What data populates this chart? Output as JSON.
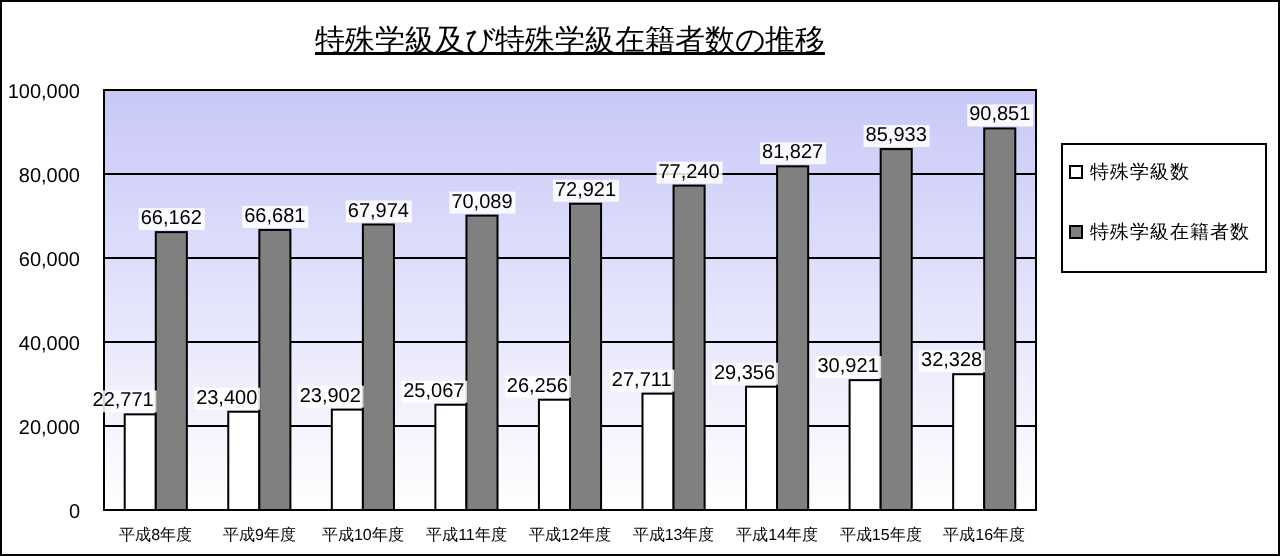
{
  "chart_data": {
    "type": "bar",
    "title": "特殊学級及び特殊学級在籍者数の推移",
    "categories": [
      "平成8年度",
      "平成9年度",
      "平成10年度",
      "平成11年度",
      "平成12年度",
      "平成13年度",
      "平成14年度",
      "平成15年度",
      "平成16年度"
    ],
    "series": [
      {
        "name": "特殊学級数",
        "color": "#ffffff",
        "values": [
          22771,
          23400,
          23902,
          25067,
          26256,
          27711,
          29356,
          30921,
          32328
        ],
        "value_labels": [
          "22,771",
          "23,400",
          "23,902",
          "25,067",
          "26,256",
          "27,711",
          "29,356",
          "30,921",
          "32,328"
        ]
      },
      {
        "name": "特殊学級在籍者数",
        "color": "#808080",
        "values": [
          66162,
          66681,
          67974,
          70089,
          72921,
          77240,
          81827,
          85933,
          90851
        ],
        "value_labels": [
          "66,162",
          "66,681",
          "67,974",
          "70,089",
          "72,921",
          "77,240",
          "81,827",
          "85,933",
          "90,851"
        ]
      }
    ],
    "ylim": [
      0,
      100000
    ],
    "yticks": [
      {
        "value": 0,
        "label": "0"
      },
      {
        "value": 20000,
        "label": "20,000"
      },
      {
        "value": 40000,
        "label": "40,000"
      },
      {
        "value": 60000,
        "label": "60,000"
      },
      {
        "value": 80000,
        "label": "80,000"
      },
      {
        "value": 100000,
        "label": "100,000"
      }
    ],
    "grid": "y",
    "legend": "right"
  }
}
